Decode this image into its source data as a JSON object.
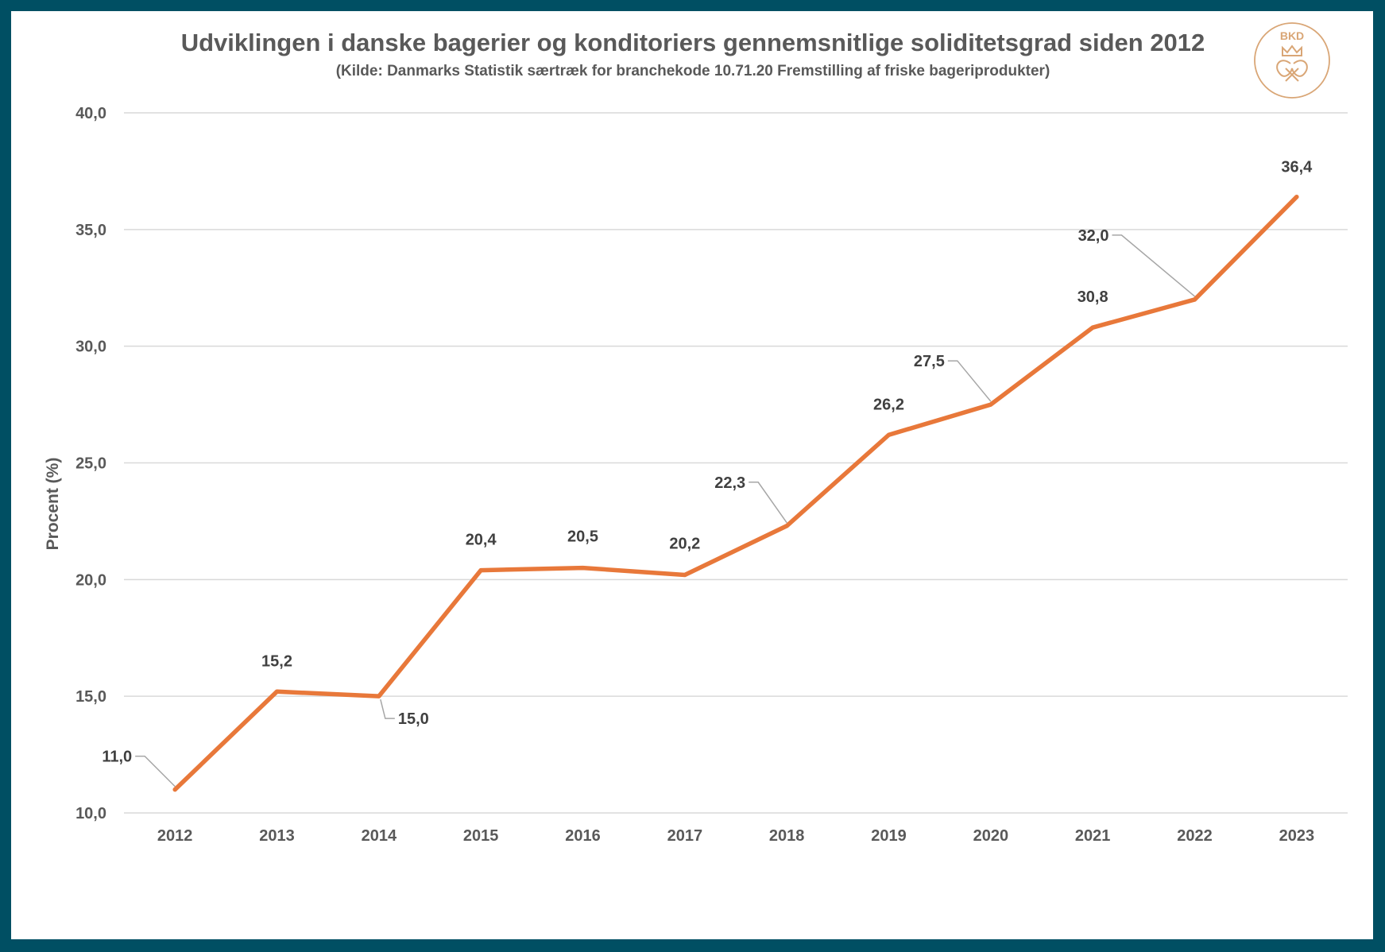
{
  "colors": {
    "frame": "#004f63",
    "background": "#ffffff",
    "line": "#e8783a",
    "text": "#595959",
    "grid": "#d9d9d9",
    "logo": "#d9a676"
  },
  "logo": {
    "text": "BKD",
    "icon": "crown-pretzel-icon"
  },
  "chart_data": {
    "type": "line",
    "title": "Udviklingen i danske bagerier og konditoriers gennemsnitlige soliditetsgrad  siden 2012",
    "subtitle": "(Kilde: Danmarks Statistik særtræk for branchekode 10.71.20 Fremstilling af friske bageriprodukter)",
    "xlabel": "",
    "ylabel": "Procent (%)",
    "categories": [
      "2012",
      "2013",
      "2014",
      "2015",
      "2016",
      "2017",
      "2018",
      "2019",
      "2020",
      "2021",
      "2022",
      "2023"
    ],
    "values": [
      11.0,
      15.2,
      15.0,
      20.4,
      20.5,
      20.2,
      22.3,
      26.2,
      27.5,
      30.8,
      32.0,
      36.4
    ],
    "value_labels": [
      "11,0",
      "15,2",
      "15,0",
      "20,4",
      "20,5",
      "20,2",
      "22,3",
      "26,2",
      "27,5",
      "30,8",
      "32,0",
      "36,4"
    ],
    "ylim": [
      10,
      40
    ],
    "yticks": [
      "10,0",
      "15,0",
      "20,0",
      "25,0",
      "30,0",
      "35,0",
      "40,0"
    ],
    "grid": true,
    "legend": "none"
  }
}
